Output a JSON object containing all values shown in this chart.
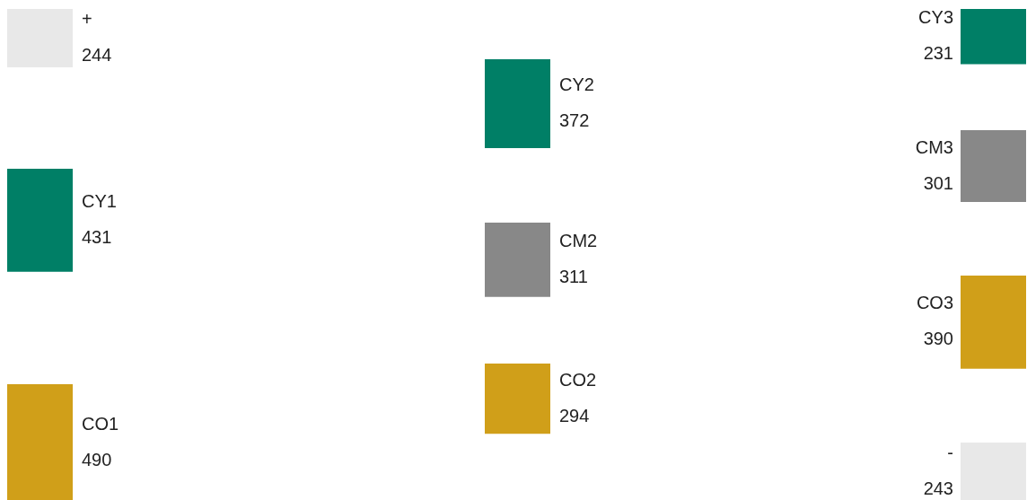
{
  "chart_data": {
    "type": "other",
    "data_labels": true,
    "categories": [
      "+",
      "CY1",
      "CO1",
      "CY2",
      "CM2",
      "CO2",
      "CY3",
      "CM3",
      "CO3",
      "-"
    ],
    "values": [
      244,
      431,
      490,
      372,
      311,
      294,
      231,
      301,
      390,
      243
    ],
    "colors": [
      "#e8e8e8",
      "#007f66",
      "#d09f19",
      "#007f66",
      "#888888",
      "#d09f19",
      "#007f66",
      "#888888",
      "#d09f19",
      "#e8e8e8"
    ]
  }
}
